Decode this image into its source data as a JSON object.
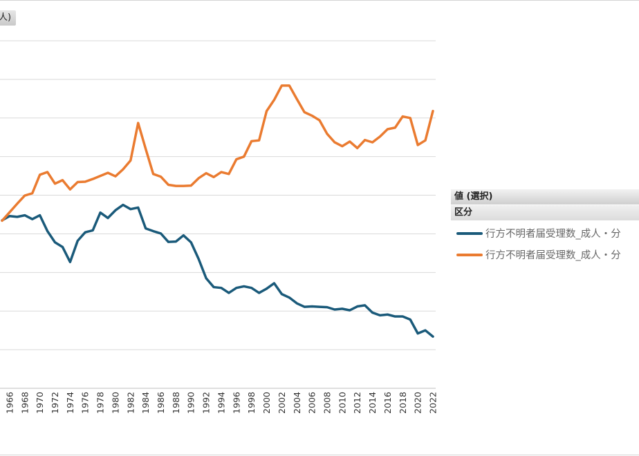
{
  "unit_label": "人)",
  "legend": {
    "title": "値 (選択)",
    "subtitle": "区分",
    "items": [
      {
        "label": "行方不明者届受理数_成人・分",
        "color": "#1a5a7a"
      },
      {
        "label": "行方不明者届受理数_成人・分",
        "color": "#ea7b30"
      }
    ]
  },
  "chart_data": {
    "type": "line",
    "title": "",
    "xlabel": "",
    "ylabel": "",
    "x_tick_labels": [
      "1966",
      "1968",
      "1970",
      "1972",
      "1974",
      "1976",
      "1978",
      "1980",
      "1982",
      "1984",
      "1986",
      "1988",
      "1990",
      "1992",
      "1994",
      "1996",
      "1998",
      "2000",
      "2002",
      "2004",
      "2006",
      "2008",
      "2010",
      "2012",
      "2014",
      "2016",
      "2018",
      "2020",
      "2022"
    ],
    "x": [
      1965,
      1966,
      1967,
      1968,
      1969,
      1970,
      1971,
      1972,
      1973,
      1974,
      1975,
      1976,
      1977,
      1978,
      1979,
      1980,
      1981,
      1982,
      1983,
      1984,
      1985,
      1986,
      1987,
      1988,
      1989,
      1990,
      1991,
      1992,
      1993,
      1994,
      1995,
      1996,
      1997,
      1998,
      1999,
      2000,
      2001,
      2002,
      2003,
      2004,
      2005,
      2006,
      2007,
      2008,
      2009,
      2010,
      2011,
      2012,
      2013,
      2014,
      2015,
      2016,
      2017,
      2018,
      2019,
      2020,
      2021,
      2022
    ],
    "ylim": [
      0,
      9
    ],
    "y_gridlines": [
      0,
      1,
      2,
      3,
      4,
      5,
      6,
      7,
      8,
      9
    ],
    "grid": true,
    "legend_position": "right",
    "series": [
      {
        "name": "行方不明者届受理数_成人・分",
        "color": "#1a5a7a",
        "values": [
          4.35,
          4.46,
          4.44,
          4.48,
          4.38,
          4.48,
          4.07,
          3.78,
          3.66,
          3.27,
          3.82,
          4.04,
          4.09,
          4.55,
          4.41,
          4.61,
          4.75,
          4.64,
          4.68,
          4.14,
          4.07,
          4.01,
          3.79,
          3.8,
          3.96,
          3.78,
          3.35,
          2.85,
          2.62,
          2.6,
          2.47,
          2.6,
          2.64,
          2.6,
          2.47,
          2.58,
          2.72,
          2.44,
          2.35,
          2.2,
          2.11,
          2.12,
          2.11,
          2.1,
          2.04,
          2.06,
          2.02,
          2.12,
          2.15,
          1.96,
          1.89,
          1.91,
          1.86,
          1.86,
          1.78,
          1.42,
          1.5,
          1.34
        ]
      },
      {
        "name": "行方不明者届受理数_成人・分",
        "color": "#ea7b30",
        "values": [
          4.34,
          4.56,
          4.78,
          4.99,
          5.05,
          5.53,
          5.6,
          5.3,
          5.39,
          5.15,
          5.34,
          5.35,
          5.42,
          5.5,
          5.58,
          5.49,
          5.67,
          5.9,
          6.87,
          6.2,
          5.55,
          5.48,
          5.27,
          5.24,
          5.24,
          5.25,
          5.44,
          5.57,
          5.47,
          5.6,
          5.55,
          5.93,
          6.0,
          6.4,
          6.42,
          7.18,
          7.47,
          7.84,
          7.84,
          7.49,
          7.15,
          7.06,
          6.94,
          6.59,
          6.37,
          6.27,
          6.39,
          6.22,
          6.43,
          6.37,
          6.52,
          6.71,
          6.75,
          7.04,
          7.0,
          6.3,
          6.42,
          7.18
        ]
      }
    ]
  }
}
